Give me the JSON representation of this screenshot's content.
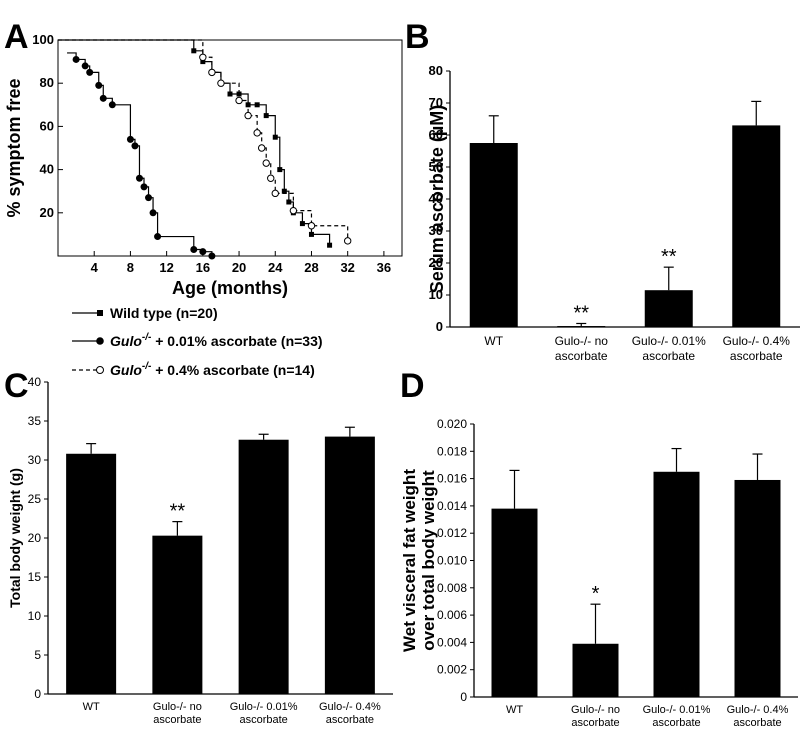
{
  "chart_data": [
    {
      "panel": "A",
      "type": "line",
      "ylabel": "% symptom free",
      "xlabel": "Age (months)",
      "xlim": [
        0,
        38
      ],
      "ylim": [
        0,
        100
      ],
      "xticks": [
        "4",
        "8",
        "12",
        "16",
        "20",
        "24",
        "28",
        "32",
        "36"
      ],
      "yticks": [
        "20",
        "40",
        "60",
        "80",
        "100"
      ],
      "series": [
        {
          "name": "Wild type (n=20)",
          "marker": "square",
          "x": [
            0,
            15,
            16,
            17,
            18,
            19,
            20,
            21,
            22,
            23,
            24,
            24.5,
            25,
            25.5,
            26,
            27,
            28,
            30
          ],
          "y": [
            100,
            95,
            90,
            85,
            80,
            75,
            75,
            70,
            70,
            65,
            55,
            40,
            30,
            25,
            20,
            15,
            10,
            5
          ]
        },
        {
          "name": "+ 0.01% ascorbate (n=33)",
          "marker": "filled-circle",
          "x": [
            1,
            2,
            3,
            3.5,
            4.5,
            5,
            6,
            8,
            8.5,
            9,
            9.5,
            10,
            10.5,
            11,
            15,
            16,
            17
          ],
          "y": [
            94,
            91,
            88,
            85,
            79,
            73,
            70,
            54,
            51,
            36,
            32,
            27,
            20,
            9,
            3,
            2,
            0
          ]
        },
        {
          "name": "+ 0.4% ascorbate (n=14)",
          "marker": "open-circle",
          "x": [
            0,
            16,
            17,
            18,
            20,
            21,
            22,
            22.5,
            23,
            23.5,
            24,
            26,
            28,
            32
          ],
          "y": [
            100,
            92,
            85,
            80,
            72,
            65,
            57,
            50,
            43,
            36,
            29,
            21,
            14,
            7
          ]
        }
      ],
      "legend": [
        {
          "prefix": "",
          "label": "Wild type (n=20)"
        },
        {
          "prefix": "Gulo",
          "sup": "-/-",
          "label": " + 0.01% ascorbate (n=33)"
        },
        {
          "prefix": "Gulo",
          "sup": "-/-",
          "label": " + 0.4% ascorbate (n=14)"
        }
      ]
    },
    {
      "panel": "B",
      "type": "bar",
      "ylabel": "Serum ascorbate (µM)",
      "ylim": [
        0,
        80
      ],
      "yticks": [
        "0",
        "10",
        "20",
        "30",
        "40",
        "50",
        "60",
        "70",
        "80"
      ],
      "categories": [
        [
          "WT"
        ],
        [
          "Gulo-/- no",
          "ascorbate"
        ],
        [
          "Gulo-/- 0.01%",
          "ascorbate"
        ],
        [
          "Gulo-/- 0.4%",
          "ascorbate"
        ]
      ],
      "values": [
        57.5,
        0.3,
        11.5,
        63
      ],
      "errors": [
        8.5,
        0.8,
        7.2,
        7.5
      ],
      "significance": [
        "",
        "**",
        "**",
        ""
      ]
    },
    {
      "panel": "C",
      "type": "bar",
      "ylabel": "Total body weight (g)",
      "ylim": [
        0,
        40
      ],
      "yticks": [
        "0",
        "5",
        "10",
        "15",
        "20",
        "25",
        "30",
        "35",
        "40"
      ],
      "categories": [
        [
          "WT"
        ],
        [
          "Gulo-/- no",
          "ascorbate"
        ],
        [
          "Gulo-/- 0.01%",
          "ascorbate"
        ],
        [
          "Gulo-/- 0.4%",
          "ascorbate"
        ]
      ],
      "values": [
        30.8,
        20.3,
        32.6,
        33
      ],
      "errors": [
        1.3,
        1.8,
        0.7,
        1.2
      ],
      "significance": [
        "",
        "**",
        "",
        ""
      ]
    },
    {
      "panel": "D",
      "type": "bar",
      "ylabel_lines": [
        "Wet visceral fat weight",
        "over total body weight"
      ],
      "ylim": [
        0,
        0.02
      ],
      "yticks": [
        "0",
        "0.002",
        "0.004",
        "0.006",
        "0.008",
        "0.010",
        "0.012",
        "0.014",
        "0.016",
        "0.018",
        "0.020"
      ],
      "categories": [
        [
          "WT"
        ],
        [
          "Gulo-/- no",
          "ascorbate"
        ],
        [
          "Gulo-/- 0.01%",
          "ascorbate"
        ],
        [
          "Gulo-/- 0.4%",
          "ascorbate"
        ]
      ],
      "values": [
        0.0138,
        0.0039,
        0.0165,
        0.0159
      ],
      "errors": [
        0.0028,
        0.0029,
        0.0017,
        0.0019
      ],
      "significance": [
        "",
        "*",
        "",
        ""
      ]
    }
  ]
}
